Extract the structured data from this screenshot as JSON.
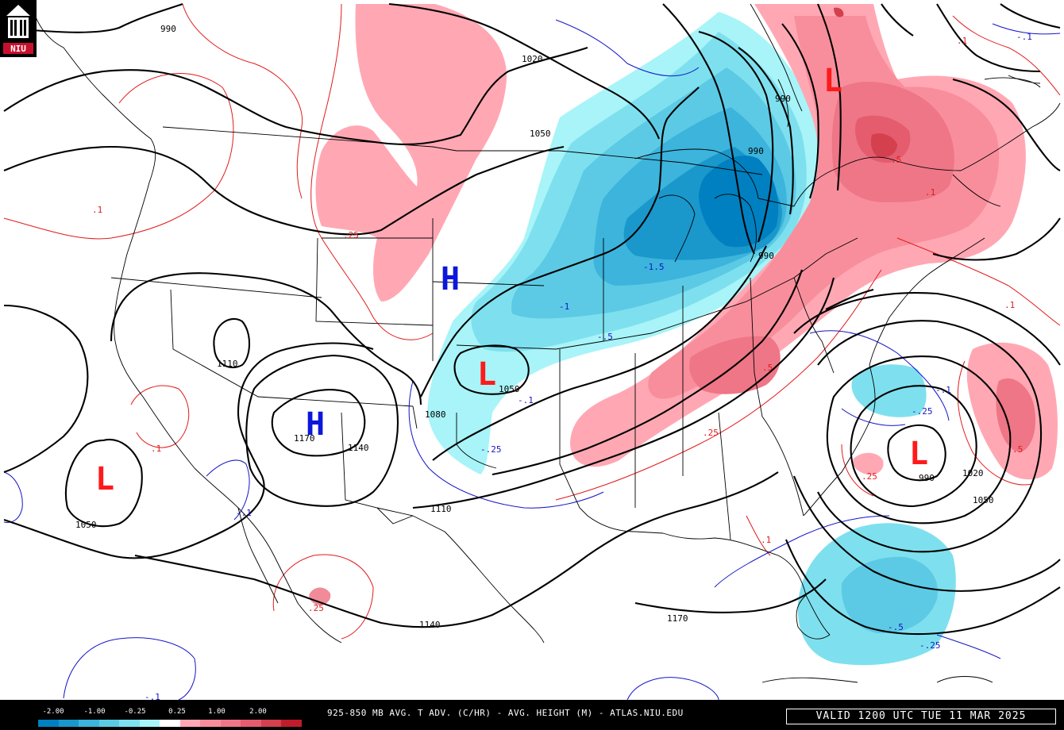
{
  "logo": {
    "text": "NIU"
  },
  "title": "925-850 MB AVG. T ADV. (C/HR) - AVG. HEIGHT (M) - ATLAS.NIU.EDU",
  "valid_time": "VALID 1200 UTC TUE 11 MAR 2025",
  "legend": {
    "labels": [
      "-2.00",
      "-1.00",
      "-0.25",
      "0.25",
      "1.00",
      "2.00"
    ],
    "colors": [
      "#0080c0",
      "#1a98cc",
      "#3cb4dc",
      "#5ccae4",
      "#7ee0ee",
      "#a8f4f8",
      "#ffffff",
      "#ffa8b4",
      "#f88e9c",
      "#ee7686",
      "#e45c6e",
      "#d4404e",
      "#c01c2c"
    ]
  },
  "colors": {
    "cold": "#43c1dc",
    "warm": "#f08b97",
    "height_contour": "#000000",
    "h_center": "#0b17dc",
    "l_center": "#ff1a1a"
  },
  "pressure_centers": [
    {
      "type": "L"
    },
    {
      "type": "H"
    },
    {
      "type": "L"
    },
    {
      "type": "H"
    },
    {
      "type": "L"
    },
    {
      "type": "L"
    }
  ],
  "height_labels": [
    "990",
    "1020",
    "1050",
    "990",
    "990",
    "990",
    "1110",
    "1050",
    "1080",
    "1170",
    "1140",
    "1050",
    "1110",
    "1140",
    "1170",
    "990",
    "1020",
    "1050"
  ],
  "advection_labels": [
    ".1",
    ".25",
    "-1.5",
    "-1",
    "-.5",
    "-.1",
    ".5",
    ".25",
    "-.25",
    ".1",
    ".5",
    ".25",
    "-.25",
    ".1",
    ".25",
    "-.5",
    "-.25",
    ".1",
    "-.1",
    "-.1",
    "-.1",
    ".1",
    ".5",
    ".1",
    "-.1"
  ]
}
